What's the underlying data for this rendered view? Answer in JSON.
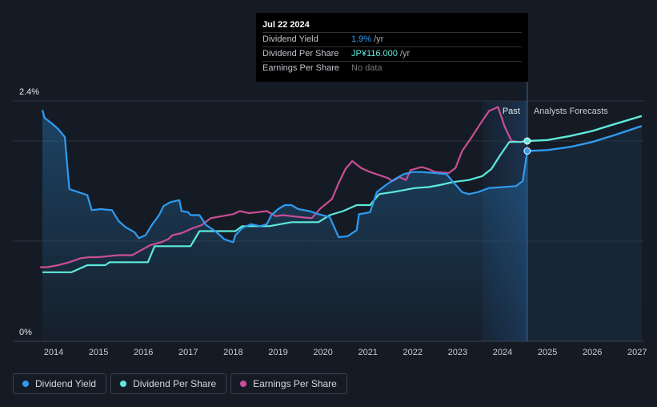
{
  "tooltip": {
    "date": "Jul 22 2024",
    "rows": [
      {
        "label": "Dividend Yield",
        "value": "1.9%",
        "unit": "/yr"
      },
      {
        "label": "Dividend Per Share",
        "value": "JP¥116.000",
        "unit": "/yr"
      },
      {
        "label": "Earnings Per Share",
        "value": "No data",
        "unit": ""
      }
    ]
  },
  "labels": {
    "past": "Past",
    "forecast": "Analysts Forecasts"
  },
  "legend": [
    {
      "label": "Dividend Yield",
      "color": "#2e9bf0"
    },
    {
      "label": "Dividend Per Share",
      "color": "#5eeadb"
    },
    {
      "label": "Earnings Per Share",
      "color": "#c94f95"
    }
  ],
  "chart_data": {
    "type": "line",
    "title": "",
    "xlabel": "",
    "ylabel": "",
    "ylim": [
      0,
      2.4
    ],
    "y_tick_labels": [
      "2.4%",
      "0%"
    ],
    "x_tick_labels": [
      "2014",
      "2015",
      "2016",
      "2017",
      "2018",
      "2019",
      "2020",
      "2021",
      "2022",
      "2023",
      "2024",
      "2025",
      "2026",
      "2027"
    ],
    "xlim": [
      2013.7,
      2027.1
    ],
    "past_forecast_boundary": 2024.55,
    "shaded_region_start": 2023.55,
    "series": [
      {
        "name": "Dividend Yield",
        "color": "#2e9bf0",
        "unit": "%",
        "points": [
          [
            2013.75,
            2.31
          ],
          [
            2013.8,
            2.23
          ],
          [
            2013.95,
            2.18
          ],
          [
            2014.1,
            2.12
          ],
          [
            2014.25,
            2.04
          ],
          [
            2014.35,
            1.52
          ],
          [
            2014.55,
            1.49
          ],
          [
            2014.75,
            1.46
          ],
          [
            2014.85,
            1.31
          ],
          [
            2015.05,
            1.32
          ],
          [
            2015.3,
            1.31
          ],
          [
            2015.45,
            1.2
          ],
          [
            2015.6,
            1.14
          ],
          [
            2015.8,
            1.09
          ],
          [
            2015.9,
            1.03
          ],
          [
            2016.05,
            1.06
          ],
          [
            2016.2,
            1.17
          ],
          [
            2016.35,
            1.26
          ],
          [
            2016.45,
            1.35
          ],
          [
            2016.6,
            1.39
          ],
          [
            2016.8,
            1.41
          ],
          [
            2016.85,
            1.3
          ],
          [
            2017.0,
            1.29
          ],
          [
            2017.05,
            1.26
          ],
          [
            2017.25,
            1.26
          ],
          [
            2017.4,
            1.16
          ],
          [
            2017.6,
            1.1
          ],
          [
            2017.8,
            1.02
          ],
          [
            2018.0,
            0.99
          ],
          [
            2018.05,
            1.06
          ],
          [
            2018.2,
            1.13
          ],
          [
            2018.4,
            1.17
          ],
          [
            2018.6,
            1.15
          ],
          [
            2018.75,
            1.17
          ],
          [
            2018.85,
            1.26
          ],
          [
            2019.0,
            1.32
          ],
          [
            2019.15,
            1.36
          ],
          [
            2019.3,
            1.36
          ],
          [
            2019.45,
            1.32
          ],
          [
            2019.7,
            1.3
          ],
          [
            2019.9,
            1.27
          ],
          [
            2020.15,
            1.24
          ],
          [
            2020.35,
            1.04
          ],
          [
            2020.55,
            1.05
          ],
          [
            2020.75,
            1.11
          ],
          [
            2020.8,
            1.27
          ],
          [
            2020.95,
            1.28
          ],
          [
            2021.05,
            1.29
          ],
          [
            2021.2,
            1.49
          ],
          [
            2021.4,
            1.56
          ],
          [
            2021.6,
            1.62
          ],
          [
            2021.8,
            1.67
          ],
          [
            2022.0,
            1.69
          ],
          [
            2022.2,
            1.69
          ],
          [
            2022.5,
            1.68
          ],
          [
            2022.75,
            1.67
          ],
          [
            2022.9,
            1.59
          ],
          [
            2023.1,
            1.49
          ],
          [
            2023.25,
            1.47
          ],
          [
            2023.45,
            1.49
          ],
          [
            2023.7,
            1.53
          ],
          [
            2024.0,
            1.54
          ],
          [
            2024.3,
            1.55
          ],
          [
            2024.45,
            1.6
          ],
          [
            2024.55,
            1.9
          ]
        ],
        "forecast": [
          [
            2024.55,
            1.9
          ],
          [
            2025.0,
            1.91
          ],
          [
            2025.5,
            1.94
          ],
          [
            2026.0,
            1.99
          ],
          [
            2026.5,
            2.06
          ],
          [
            2027.1,
            2.15
          ]
        ]
      },
      {
        "name": "Dividend Per Share",
        "color": "#5eeadb",
        "unit": "JP¥",
        "points": [
          [
            2013.75,
            0.69
          ],
          [
            2014.0,
            0.69
          ],
          [
            2014.4,
            0.69
          ],
          [
            2014.55,
            0.72
          ],
          [
            2014.75,
            0.76
          ],
          [
            2015.0,
            0.76
          ],
          [
            2015.15,
            0.76
          ],
          [
            2015.25,
            0.79
          ],
          [
            2015.5,
            0.79
          ],
          [
            2015.9,
            0.79
          ],
          [
            2016.1,
            0.79
          ],
          [
            2016.25,
            0.95
          ],
          [
            2016.55,
            0.95
          ],
          [
            2016.8,
            0.95
          ],
          [
            2017.05,
            0.95
          ],
          [
            2017.25,
            1.1
          ],
          [
            2017.5,
            1.1
          ],
          [
            2017.8,
            1.1
          ],
          [
            2018.05,
            1.1
          ],
          [
            2018.2,
            1.15
          ],
          [
            2018.5,
            1.15
          ],
          [
            2018.8,
            1.15
          ],
          [
            2019.05,
            1.17
          ],
          [
            2019.3,
            1.19
          ],
          [
            2019.6,
            1.19
          ],
          [
            2019.9,
            1.19
          ],
          [
            2020.15,
            1.26
          ],
          [
            2020.45,
            1.3
          ],
          [
            2020.75,
            1.36
          ],
          [
            2021.05,
            1.36
          ],
          [
            2021.25,
            1.47
          ],
          [
            2021.55,
            1.49
          ],
          [
            2021.8,
            1.51
          ],
          [
            2022.05,
            1.53
          ],
          [
            2022.35,
            1.54
          ],
          [
            2022.6,
            1.56
          ],
          [
            2022.9,
            1.59
          ],
          [
            2023.25,
            1.61
          ],
          [
            2023.55,
            1.65
          ],
          [
            2023.75,
            1.72
          ],
          [
            2023.95,
            1.86
          ],
          [
            2024.15,
            1.99
          ],
          [
            2024.4,
            1.99
          ],
          [
            2024.55,
            2.0
          ]
        ],
        "forecast": [
          [
            2024.55,
            2.0
          ],
          [
            2025.0,
            2.01
          ],
          [
            2025.5,
            2.05
          ],
          [
            2026.0,
            2.1
          ],
          [
            2026.5,
            2.17
          ],
          [
            2027.1,
            2.25
          ]
        ]
      },
      {
        "name": "Earnings Per Share",
        "color": "#c94f95",
        "unit": "JP¥",
        "points": [
          [
            2013.7,
            0.74
          ],
          [
            2013.85,
            0.74
          ],
          [
            2014.1,
            0.76
          ],
          [
            2014.35,
            0.79
          ],
          [
            2014.6,
            0.83
          ],
          [
            2014.8,
            0.84
          ],
          [
            2015.0,
            0.84
          ],
          [
            2015.2,
            0.85
          ],
          [
            2015.45,
            0.86
          ],
          [
            2015.75,
            0.86
          ],
          [
            2015.95,
            0.91
          ],
          [
            2016.15,
            0.96
          ],
          [
            2016.4,
            0.99
          ],
          [
            2016.55,
            1.02
          ],
          [
            2016.65,
            1.06
          ],
          [
            2016.85,
            1.08
          ],
          [
            2017.1,
            1.13
          ],
          [
            2017.3,
            1.16
          ],
          [
            2017.5,
            1.23
          ],
          [
            2017.75,
            1.25
          ],
          [
            2018.0,
            1.27
          ],
          [
            2018.15,
            1.3
          ],
          [
            2018.35,
            1.28
          ],
          [
            2018.55,
            1.29
          ],
          [
            2018.75,
            1.3
          ],
          [
            2018.95,
            1.25
          ],
          [
            2019.1,
            1.26
          ],
          [
            2019.3,
            1.25
          ],
          [
            2019.5,
            1.24
          ],
          [
            2019.75,
            1.23
          ],
          [
            2019.95,
            1.33
          ],
          [
            2020.2,
            1.42
          ],
          [
            2020.35,
            1.58
          ],
          [
            2020.5,
            1.72
          ],
          [
            2020.65,
            1.8
          ],
          [
            2020.85,
            1.73
          ],
          [
            2021.05,
            1.69
          ],
          [
            2021.25,
            1.66
          ],
          [
            2021.45,
            1.63
          ],
          [
            2021.55,
            1.6
          ],
          [
            2021.7,
            1.64
          ],
          [
            2021.85,
            1.61
          ],
          [
            2021.95,
            1.71
          ],
          [
            2022.2,
            1.74
          ],
          [
            2022.35,
            1.72
          ],
          [
            2022.5,
            1.69
          ],
          [
            2022.8,
            1.68
          ],
          [
            2022.95,
            1.73
          ],
          [
            2023.1,
            1.9
          ],
          [
            2023.3,
            2.03
          ],
          [
            2023.5,
            2.17
          ],
          [
            2023.7,
            2.3
          ],
          [
            2023.9,
            2.34
          ],
          [
            2024.05,
            2.14
          ],
          [
            2024.2,
            2.0
          ],
          [
            2024.4,
            1.99
          ],
          [
            2024.55,
            2.0
          ]
        ]
      }
    ]
  }
}
